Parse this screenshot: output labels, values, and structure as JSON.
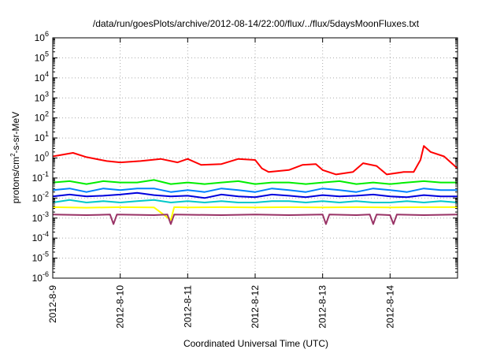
{
  "chart_data": {
    "type": "line",
    "title": "/data/run/goesPlots/archive/2012-08-14/22:00/flux/../flux/5daysMoonFluxes.txt",
    "xlabel": "Coordinated Universal Time (UTC)",
    "ylabel_pre": "protons/cm",
    "ylabel_sup": "2",
    "ylabel_post": "-s-sr-MeV",
    "x_ticks": [
      "2012-8-9",
      "2012-8-10",
      "2012-8-11",
      "2012-8-12",
      "2012-8-13",
      "2012-8-14"
    ],
    "x_range_days": [
      0,
      6
    ],
    "y_scale": "log",
    "y_ticks": [
      -6,
      -5,
      -4,
      -3,
      -2,
      -1,
      0,
      1,
      2,
      3,
      4,
      5,
      6
    ],
    "y_range_exp": [
      -6,
      6
    ],
    "grid": true,
    "series": [
      {
        "color": "#ff0000",
        "points": [
          [
            0,
            1.2
          ],
          [
            0.3,
            1.8
          ],
          [
            0.5,
            1.1
          ],
          [
            0.8,
            0.7
          ],
          [
            1.0,
            0.6
          ],
          [
            1.3,
            0.7
          ],
          [
            1.6,
            0.9
          ],
          [
            1.85,
            0.6
          ],
          [
            2.0,
            0.9
          ],
          [
            2.2,
            0.45
          ],
          [
            2.5,
            0.5
          ],
          [
            2.75,
            0.9
          ],
          [
            3.0,
            0.8
          ],
          [
            3.1,
            0.3
          ],
          [
            3.2,
            0.2
          ],
          [
            3.5,
            0.25
          ],
          [
            3.7,
            0.45
          ],
          [
            3.9,
            0.5
          ],
          [
            4.0,
            0.25
          ],
          [
            4.2,
            0.15
          ],
          [
            4.45,
            0.2
          ],
          [
            4.6,
            0.55
          ],
          [
            4.8,
            0.4
          ],
          [
            4.95,
            0.15
          ],
          [
            5.2,
            0.2
          ],
          [
            5.35,
            0.2
          ],
          [
            5.45,
            0.8
          ],
          [
            5.5,
            4.0
          ],
          [
            5.6,
            2.0
          ],
          [
            5.8,
            1.2
          ],
          [
            6.0,
            0.3
          ]
        ]
      },
      {
        "color": "#00ee00",
        "points": [
          [
            0,
            0.06
          ],
          [
            0.25,
            0.07
          ],
          [
            0.5,
            0.05
          ],
          [
            0.75,
            0.07
          ],
          [
            1.0,
            0.06
          ],
          [
            1.25,
            0.06
          ],
          [
            1.5,
            0.08
          ],
          [
            1.75,
            0.05
          ],
          [
            2.0,
            0.06
          ],
          [
            2.25,
            0.05
          ],
          [
            2.5,
            0.06
          ],
          [
            2.75,
            0.07
          ],
          [
            3.0,
            0.05
          ],
          [
            3.25,
            0.06
          ],
          [
            3.5,
            0.06
          ],
          [
            3.75,
            0.05
          ],
          [
            4.0,
            0.06
          ],
          [
            4.25,
            0.07
          ],
          [
            4.5,
            0.05
          ],
          [
            4.75,
            0.06
          ],
          [
            5.0,
            0.05
          ],
          [
            5.25,
            0.06
          ],
          [
            5.5,
            0.07
          ],
          [
            5.75,
            0.06
          ],
          [
            6.0,
            0.06
          ]
        ]
      },
      {
        "color": "#0080ff",
        "points": [
          [
            0,
            0.025
          ],
          [
            0.25,
            0.03
          ],
          [
            0.5,
            0.02
          ],
          [
            0.75,
            0.03
          ],
          [
            1.0,
            0.025
          ],
          [
            1.25,
            0.03
          ],
          [
            1.5,
            0.03
          ],
          [
            1.75,
            0.02
          ],
          [
            2.0,
            0.025
          ],
          [
            2.25,
            0.02
          ],
          [
            2.5,
            0.03
          ],
          [
            2.75,
            0.025
          ],
          [
            3.0,
            0.02
          ],
          [
            3.25,
            0.03
          ],
          [
            3.5,
            0.025
          ],
          [
            3.75,
            0.02
          ],
          [
            4.0,
            0.03
          ],
          [
            4.25,
            0.025
          ],
          [
            4.5,
            0.02
          ],
          [
            4.75,
            0.03
          ],
          [
            5.0,
            0.025
          ],
          [
            5.25,
            0.02
          ],
          [
            5.5,
            0.03
          ],
          [
            5.75,
            0.025
          ],
          [
            6.0,
            0.025
          ]
        ]
      },
      {
        "color": "#0000dd",
        "points": [
          [
            0,
            0.012
          ],
          [
            0.25,
            0.015
          ],
          [
            0.5,
            0.012
          ],
          [
            0.75,
            0.013
          ],
          [
            1.0,
            0.015
          ],
          [
            1.25,
            0.018
          ],
          [
            1.5,
            0.014
          ],
          [
            1.75,
            0.012
          ],
          [
            2.0,
            0.013
          ],
          [
            2.25,
            0.01
          ],
          [
            2.5,
            0.015
          ],
          [
            2.75,
            0.012
          ],
          [
            3.0,
            0.011
          ],
          [
            3.25,
            0.015
          ],
          [
            3.5,
            0.013
          ],
          [
            3.75,
            0.011
          ],
          [
            4.0,
            0.014
          ],
          [
            4.25,
            0.012
          ],
          [
            4.5,
            0.013
          ],
          [
            4.75,
            0.015
          ],
          [
            5.0,
            0.012
          ],
          [
            5.25,
            0.011
          ],
          [
            5.5,
            0.014
          ],
          [
            5.75,
            0.012
          ],
          [
            6.0,
            0.012
          ]
        ]
      },
      {
        "color": "#00c8c8",
        "points": [
          [
            0,
            0.006
          ],
          [
            0.25,
            0.008
          ],
          [
            0.5,
            0.006
          ],
          [
            0.75,
            0.007
          ],
          [
            1.0,
            0.006
          ],
          [
            1.25,
            0.007
          ],
          [
            1.5,
            0.008
          ],
          [
            1.75,
            0.006
          ],
          [
            2.0,
            0.007
          ],
          [
            2.25,
            0.006
          ],
          [
            2.5,
            0.007
          ],
          [
            2.75,
            0.006
          ],
          [
            3.0,
            0.006
          ],
          [
            3.25,
            0.007
          ],
          [
            3.5,
            0.007
          ],
          [
            3.75,
            0.006
          ],
          [
            4.0,
            0.007
          ],
          [
            4.25,
            0.006
          ],
          [
            4.5,
            0.007
          ],
          [
            4.75,
            0.006
          ],
          [
            5.0,
            0.006
          ],
          [
            5.25,
            0.007
          ],
          [
            5.5,
            0.006
          ],
          [
            5.75,
            0.007
          ],
          [
            6.0,
            0.006
          ]
        ]
      },
      {
        "color": "#ffff00",
        "points": [
          [
            0,
            0.0035
          ],
          [
            0.5,
            0.0033
          ],
          [
            1.0,
            0.0035
          ],
          [
            1.5,
            0.0034
          ],
          [
            1.75,
            0.0008
          ],
          [
            1.8,
            0.0035
          ],
          [
            2.0,
            0.0034
          ],
          [
            2.5,
            0.0035
          ],
          [
            3.0,
            0.0034
          ],
          [
            3.5,
            0.0035
          ],
          [
            4.0,
            0.0034
          ],
          [
            4.5,
            0.0035
          ],
          [
            5.0,
            0.0034
          ],
          [
            5.5,
            0.0035
          ],
          [
            6.0,
            0.0035
          ]
        ]
      },
      {
        "color": "#993366",
        "points": [
          [
            0,
            0.0015
          ],
          [
            0.5,
            0.0014
          ],
          [
            0.85,
            0.0015
          ],
          [
            0.9,
            0.0005
          ],
          [
            0.95,
            0.0015
          ],
          [
            1.5,
            0.0014
          ],
          [
            1.7,
            0.0015
          ],
          [
            1.75,
            0.0005
          ],
          [
            1.8,
            0.0015
          ],
          [
            2.5,
            0.0014
          ],
          [
            3.0,
            0.0015
          ],
          [
            3.5,
            0.0014
          ],
          [
            4.0,
            0.0015
          ],
          [
            4.05,
            0.0005
          ],
          [
            4.1,
            0.0015
          ],
          [
            4.5,
            0.0014
          ],
          [
            4.7,
            0.0015
          ],
          [
            4.75,
            0.0005
          ],
          [
            4.8,
            0.0015
          ],
          [
            5.0,
            0.0014
          ],
          [
            5.05,
            0.0005
          ],
          [
            5.1,
            0.0015
          ],
          [
            5.5,
            0.0014
          ],
          [
            6.0,
            0.0015
          ]
        ]
      }
    ]
  }
}
